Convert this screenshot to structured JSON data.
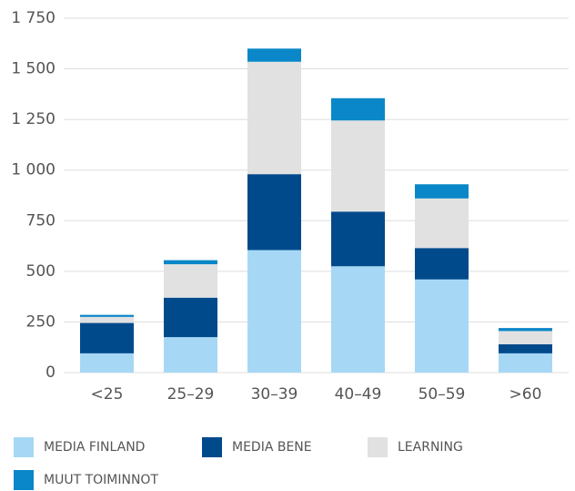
{
  "chart_data": {
    "type": "stacked_bar",
    "categories": [
      "<25",
      "25–29",
      "30–39",
      "40–49",
      "50–59",
      ">60"
    ],
    "series": [
      {
        "name": "MEDIA FINLAND",
        "color": "#a6d8f5",
        "values": [
          95,
          175,
          605,
          525,
          460,
          95
        ]
      },
      {
        "name": "MEDIA BENE",
        "color": "#004a8c",
        "values": [
          150,
          195,
          375,
          270,
          155,
          45
        ]
      },
      {
        "name": "LEARNING",
        "color": "#e1e1e1",
        "values": [
          30,
          165,
          555,
          450,
          245,
          65
        ]
      },
      {
        "name": "MUUT TOIMINNOT",
        "color": "#0a87c8",
        "values": [
          10,
          20,
          65,
          110,
          70,
          15
        ]
      }
    ],
    "ylim": [
      0,
      1750
    ],
    "yticks": [
      0,
      250,
      500,
      750,
      {
        "value": 1000,
        "label": "1 000"
      },
      {
        "value": 1250,
        "label": "1 250"
      },
      {
        "value": 1500,
        "label": "1 500"
      },
      {
        "value": 1750,
        "label": "1 750"
      }
    ],
    "grid": true
  }
}
